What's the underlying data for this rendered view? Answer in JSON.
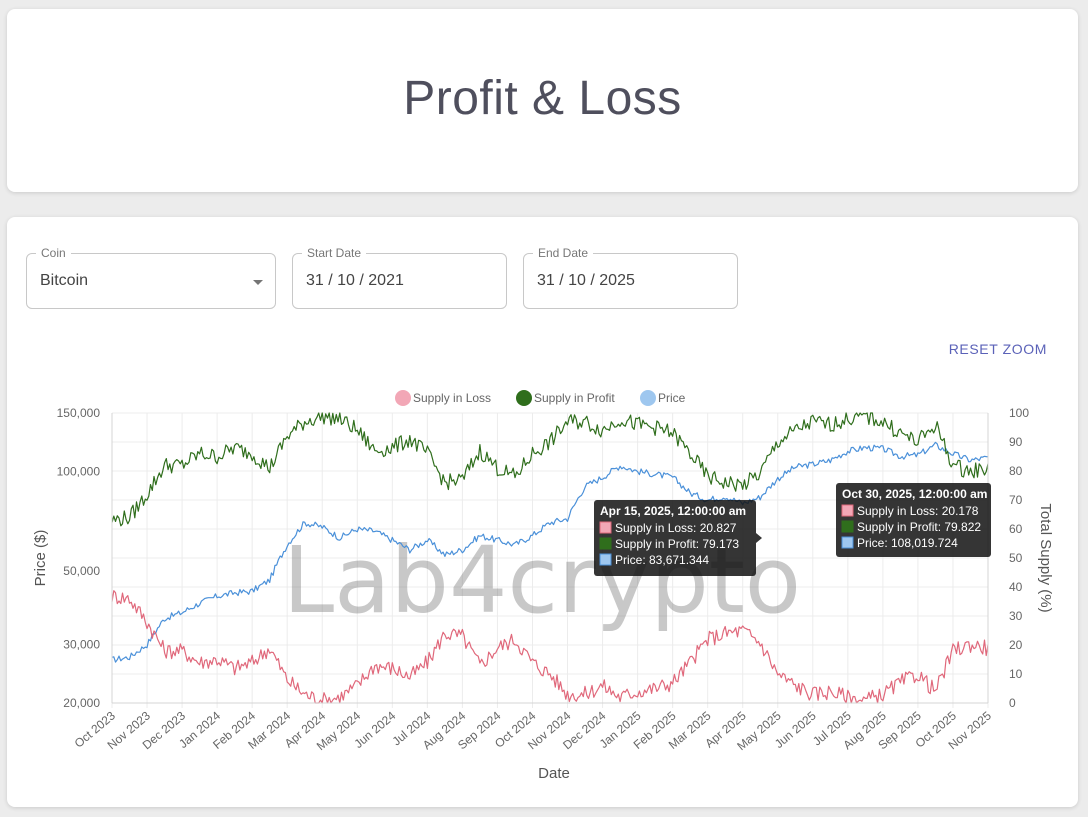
{
  "header": {
    "title": "Profit & Loss"
  },
  "filters": {
    "coin": {
      "label": "Coin",
      "value": "Bitcoin"
    },
    "start_date": {
      "label": "Start Date",
      "value": "31 / 10 / 2021"
    },
    "end_date": {
      "label": "End Date",
      "value": "31 / 10 / 2025"
    }
  },
  "actions": {
    "reset_zoom": "RESET ZOOM"
  },
  "watermark": "Lab4crypto",
  "chart_data": {
    "type": "line",
    "xlabel": "Date",
    "ylabel_left": "Price ($)",
    "ylabel_right": "Total Supply (%)",
    "left_axis": {
      "scale": "log",
      "range": [
        20000,
        150000
      ],
      "ticks": [
        20000,
        30000,
        50000,
        100000,
        150000
      ],
      "tick_labels": [
        "20,000",
        "30,000",
        "50,000",
        "100,000",
        "150,000"
      ]
    },
    "right_axis": {
      "range": [
        0,
        100
      ],
      "ticks": [
        0,
        10,
        20,
        30,
        40,
        50,
        60,
        70,
        80,
        90,
        100
      ]
    },
    "x_ticks": [
      "Oct 2023",
      "Nov 2023",
      "Dec 2023",
      "Jan 2024",
      "Feb 2024",
      "Mar 2024",
      "Apr 2024",
      "May 2024",
      "Jun 2024",
      "Jul 2024",
      "Aug 2024",
      "Sep 2024",
      "Oct 2024",
      "Nov 2024",
      "Dec 2024",
      "Jan 2025",
      "Feb 2025",
      "Mar 2025",
      "Apr 2025",
      "May 2025",
      "Jun 2025",
      "Jul 2025",
      "Aug 2025",
      "Sep 2025",
      "Oct 2025",
      "Nov 2025"
    ],
    "x_range_months": [
      0,
      25
    ],
    "legend": {
      "position": "top",
      "items": [
        {
          "name": "Supply in Loss",
          "color": "#f2a7b6"
        },
        {
          "name": "Supply in Profit",
          "color": "#2f6e1c"
        },
        {
          "name": "Price",
          "color": "#9ec7ef"
        }
      ]
    },
    "series": [
      {
        "name": "Price",
        "axis": "left",
        "color": "#4a90d9",
        "x": [
          0,
          0.5,
          1,
          1.5,
          2,
          2.5,
          3,
          3.5,
          4,
          4.5,
          5,
          5.5,
          6,
          6.5,
          7,
          7.5,
          8,
          8.5,
          9,
          9.5,
          10,
          10.5,
          11,
          11.5,
          12,
          12.5,
          13,
          13.5,
          14,
          14.5,
          15,
          15.5,
          16,
          16.5,
          17,
          17.5,
          18,
          18.5,
          19,
          19.5,
          20,
          20.5,
          21,
          21.5,
          22,
          22.5,
          23,
          23.5,
          24,
          24.5,
          25
        ],
        "values": [
          27000,
          27500,
          30000,
          36000,
          37500,
          40000,
          42000,
          43000,
          43500,
          47000,
          60000,
          70000,
          68000,
          63000,
          67000,
          66000,
          62000,
          58000,
          62000,
          56000,
          58000,
          64000,
          62000,
          60000,
          64000,
          70000,
          72000,
          90000,
          96000,
          104000,
          100000,
          98000,
          96000,
          86000,
          82000,
          84000,
          80000,
          83671,
          95000,
          103000,
          105000,
          108000,
          115000,
          118000,
          117000,
          111000,
          112000,
          120000,
          113000,
          108020,
          110000
        ]
      },
      {
        "name": "Supply in Loss",
        "axis": "right",
        "color": "#e0687b",
        "x": [
          0,
          0.5,
          1,
          1.5,
          2,
          2.5,
          3,
          3.5,
          4,
          4.5,
          5,
          5.5,
          6,
          6.5,
          7,
          7.5,
          8,
          8.5,
          9,
          9.5,
          10,
          10.5,
          11,
          11.5,
          12,
          12.5,
          13,
          13.5,
          14,
          14.5,
          15,
          15.5,
          16,
          16.5,
          17,
          17.5,
          18,
          18.5,
          19,
          19.5,
          20,
          20.5,
          21,
          21.5,
          22,
          22.5,
          23,
          23.5,
          24,
          24.5,
          25
        ],
        "values": [
          37,
          36,
          28,
          18,
          18,
          14,
          15,
          12,
          14,
          19,
          8,
          3,
          1,
          2,
          6,
          13,
          12,
          9,
          14,
          24,
          23,
          13,
          19,
          22,
          14,
          10,
          3,
          3,
          6,
          2,
          4,
          5,
          7,
          14,
          22,
          24,
          25,
          20.83,
          10,
          6,
          3,
          4,
          2,
          1,
          3,
          7,
          10,
          4,
          18,
          20.18,
          19
        ]
      },
      {
        "name": "Supply in Profit",
        "axis": "right",
        "color": "#2f6e1c",
        "x": [
          0,
          0.5,
          1,
          1.5,
          2,
          2.5,
          3,
          3.5,
          4,
          4.5,
          5,
          5.5,
          6,
          6.5,
          7,
          7.5,
          8,
          8.5,
          9,
          9.5,
          10,
          10.5,
          11,
          11.5,
          12,
          12.5,
          13,
          13.5,
          14,
          14.5,
          15,
          15.5,
          16,
          16.5,
          17,
          17.5,
          18,
          18.5,
          19,
          19.5,
          20,
          20.5,
          21,
          21.5,
          22,
          22.5,
          23,
          23.5,
          24,
          24.5,
          25
        ],
        "values": [
          63,
          64,
          72,
          82,
          82,
          86,
          85,
          88,
          86,
          81,
          92,
          97,
          99,
          98,
          94,
          87,
          88,
          91,
          86,
          76,
          77,
          87,
          81,
          78,
          86,
          90,
          97,
          97,
          94,
          98,
          96,
          95,
          93,
          86,
          78,
          76,
          75,
          79.17,
          90,
          94,
          97,
          96,
          98,
          99,
          97,
          93,
          90,
          96,
          82,
          79.82,
          81
        ]
      }
    ],
    "tooltips": [
      {
        "title": "Apr 15, 2025, 12:00:00 am",
        "x": 18.5,
        "lines": [
          {
            "series": "Supply in Loss",
            "text": "Supply in Loss: 20.827",
            "swatch": "#f2a7b6",
            "border": "#e0687b"
          },
          {
            "series": "Supply in Profit",
            "text": "Supply in Profit: 79.173",
            "swatch": "#2f6e1c",
            "border": "#2f6e1c"
          },
          {
            "series": "Price",
            "text": "Price: 83,671.344",
            "swatch": "#9ec7ef",
            "border": "#4a90d9"
          }
        ]
      },
      {
        "title": "Oct 30, 2025, 12:00:00 am",
        "x": 24.97,
        "lines": [
          {
            "series": "Supply in Loss",
            "text": "Supply in Loss: 20.178",
            "swatch": "#f2a7b6",
            "border": "#e0687b"
          },
          {
            "series": "Supply in Profit",
            "text": "Supply in Profit: 79.822",
            "swatch": "#2f6e1c",
            "border": "#2f6e1c"
          },
          {
            "series": "Price",
            "text": "Price: 108,019.724",
            "swatch": "#9ec7ef",
            "border": "#4a90d9"
          }
        ]
      }
    ]
  }
}
